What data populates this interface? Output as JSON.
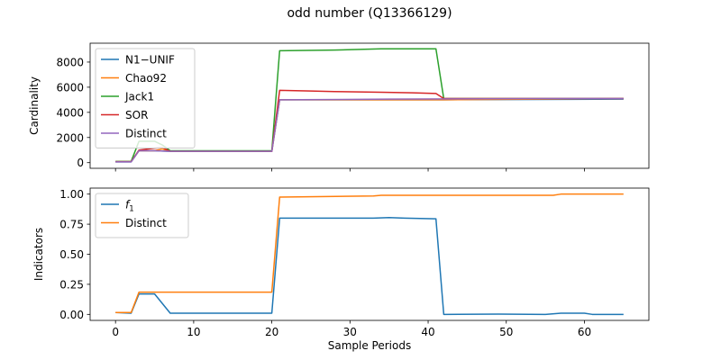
{
  "figure": {
    "suptitle": "odd number (Q13366129)"
  },
  "chart_data": [
    {
      "type": "line",
      "title": "",
      "xlabel": "",
      "ylabel": "Cardinality",
      "xlim": [
        -3.25,
        68.25
      ],
      "ylim": [
        -450,
        9500
      ],
      "xticks": [
        0,
        10,
        20,
        30,
        40,
        50,
        60
      ],
      "xtick_labels_visible": false,
      "yticks": [
        0,
        2000,
        4000,
        6000,
        8000
      ],
      "ytick_labels": [
        "0",
        "2000",
        "4000",
        "6000",
        "8000"
      ],
      "grid": false,
      "legend": "upper-left",
      "series": [
        {
          "name": "N1−UNIF",
          "color": "#1f77b4",
          "points": [
            [
              0,
              60
            ],
            [
              2,
              60
            ],
            [
              3,
              950
            ],
            [
              5,
              950
            ],
            [
              7,
              900
            ],
            [
              20,
              900
            ],
            [
              21,
              5000
            ],
            [
              42,
              5000
            ],
            [
              65,
              5050
            ]
          ]
        },
        {
          "name": "Chao92",
          "color": "#ff7f0e",
          "points": [
            [
              0,
              80
            ],
            [
              2,
              80
            ],
            [
              3,
              950
            ],
            [
              5,
              950
            ],
            [
              6,
              1100
            ],
            [
              7,
              900
            ],
            [
              20,
              900
            ],
            [
              21,
              5000
            ],
            [
              42,
              5000
            ],
            [
              65,
              5100
            ]
          ]
        },
        {
          "name": "Jack1",
          "color": "#2ca02c",
          "points": [
            [
              0,
              100
            ],
            [
              2,
              100
            ],
            [
              3,
              1700
            ],
            [
              5,
              1700
            ],
            [
              6,
              1400
            ],
            [
              7,
              950
            ],
            [
              20,
              950
            ],
            [
              21,
              8900
            ],
            [
              28,
              8950
            ],
            [
              34,
              9050
            ],
            [
              41,
              9050
            ],
            [
              42,
              5100
            ],
            [
              65,
              5100
            ]
          ]
        },
        {
          "name": "SOR",
          "color": "#d62728",
          "points": [
            [
              0,
              80
            ],
            [
              2,
              80
            ],
            [
              3,
              1000
            ],
            [
              5,
              1150
            ],
            [
              6,
              1200
            ],
            [
              7,
              900
            ],
            [
              20,
              900
            ],
            [
              21,
              5750
            ],
            [
              25,
              5700
            ],
            [
              28,
              5650
            ],
            [
              34,
              5600
            ],
            [
              38,
              5550
            ],
            [
              41,
              5500
            ],
            [
              42,
              5100
            ],
            [
              65,
              5100
            ]
          ]
        },
        {
          "name": "Distinct",
          "color": "#9467bd",
          "points": [
            [
              0,
              60
            ],
            [
              2,
              60
            ],
            [
              3,
              950
            ],
            [
              5,
              950
            ],
            [
              7,
              900
            ],
            [
              20,
              900
            ],
            [
              21,
              5000
            ],
            [
              35,
              5050
            ],
            [
              55,
              5100
            ],
            [
              65,
              5100
            ]
          ]
        }
      ]
    },
    {
      "type": "line",
      "title": "",
      "xlabel": "Sample Periods",
      "ylabel": "Indicators",
      "xlim": [
        -3.25,
        68.25
      ],
      "ylim": [
        -0.05,
        1.05
      ],
      "xticks": [
        0,
        10,
        20,
        30,
        40,
        50,
        60
      ],
      "xtick_labels": [
        "0",
        "10",
        "20",
        "30",
        "40",
        "50",
        "60"
      ],
      "yticks": [
        0.0,
        0.25,
        0.5,
        0.75,
        1.0
      ],
      "ytick_labels": [
        "0.00",
        "0.25",
        "0.50",
        "0.75",
        "1.00"
      ],
      "grid": false,
      "legend": "upper-left",
      "series": [
        {
          "name": "f",
          "name_subscript": "1",
          "color": "#1f77b4",
          "points": [
            [
              0,
              0.015
            ],
            [
              2,
              0.01
            ],
            [
              3,
              0.17
            ],
            [
              5,
              0.17
            ],
            [
              7,
              0.01
            ],
            [
              20,
              0.01
            ],
            [
              21,
              0.8
            ],
            [
              30,
              0.8
            ],
            [
              33,
              0.8
            ],
            [
              35,
              0.805
            ],
            [
              37,
              0.8
            ],
            [
              41,
              0.795
            ],
            [
              42,
              0.0
            ],
            [
              49,
              0.002
            ],
            [
              55,
              0.0
            ],
            [
              57,
              0.01
            ],
            [
              60,
              0.01
            ],
            [
              61,
              0.0
            ],
            [
              65,
              0.0
            ]
          ]
        },
        {
          "name": "Distinct",
          "color": "#ff7f0e",
          "points": [
            [
              0,
              0.015
            ],
            [
              2,
              0.015
            ],
            [
              3,
              0.185
            ],
            [
              20,
              0.185
            ],
            [
              21,
              0.975
            ],
            [
              27,
              0.98
            ],
            [
              33,
              0.985
            ],
            [
              34,
              0.99
            ],
            [
              49,
              0.99
            ],
            [
              56,
              0.99
            ],
            [
              57,
              1.0
            ],
            [
              65,
              1.0
            ]
          ]
        }
      ]
    }
  ]
}
